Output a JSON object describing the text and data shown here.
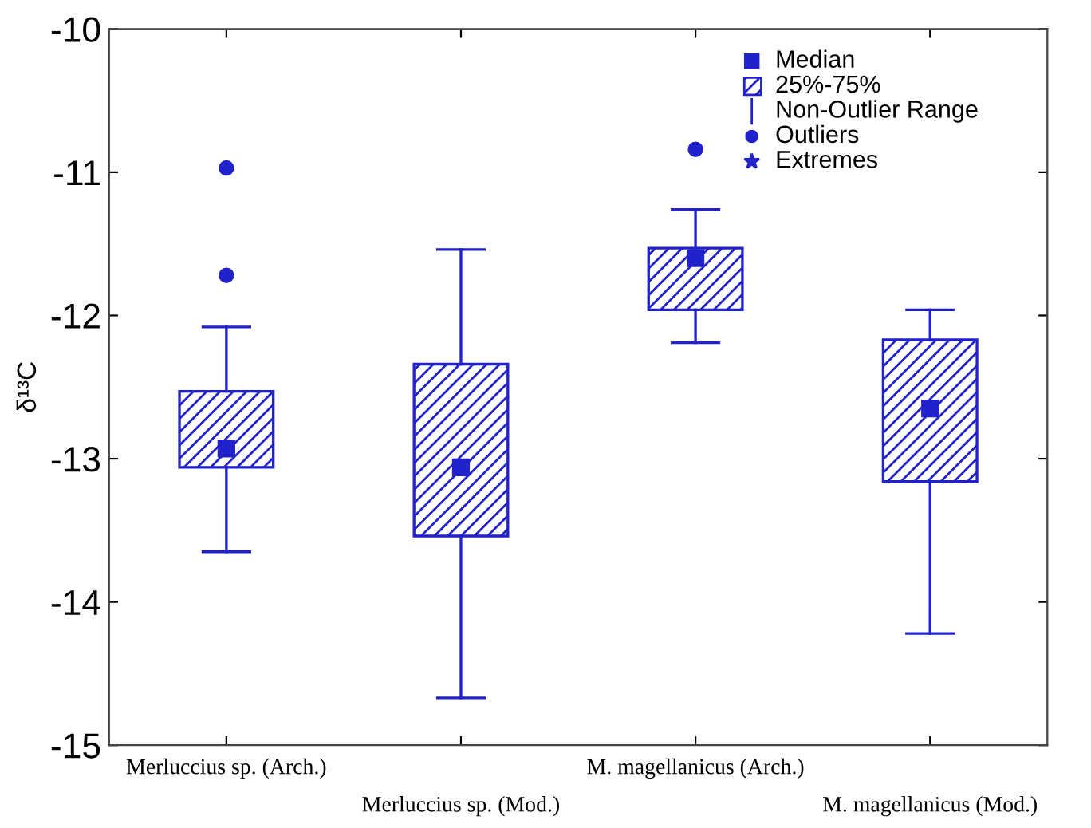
{
  "chart_data": {
    "type": "box",
    "ylabel": "δ¹³C",
    "categories": [
      "Merluccius sp. (Arch.)",
      "Merluccius sp. (Mod.)",
      "M. magellanicus (Arch.)",
      "M. magellanicus (Mod.)"
    ],
    "color": "#2222cc",
    "boxes": [
      {
        "low": -13.65,
        "q1": -13.06,
        "median": -12.93,
        "q3": -12.53,
        "high": -12.08,
        "outliers": [
          -10.97,
          -11.72
        ]
      },
      {
        "low": -14.67,
        "q1": -13.54,
        "median": -13.06,
        "q3": -12.34,
        "high": -11.54
      },
      {
        "low": -12.19,
        "q1": -11.96,
        "median": -11.6,
        "q3": -11.53,
        "high": -11.26,
        "outliers": [
          -10.84
        ]
      },
      {
        "low": -14.22,
        "q1": -13.16,
        "median": -12.65,
        "q3": -12.17,
        "high": -11.96
      }
    ],
    "ylim": [
      -15,
      -10
    ],
    "yticks": [
      -15,
      -14,
      -13,
      -12,
      -11,
      -10
    ],
    "annotations": [
      "Median",
      "25%-75%",
      "Non-Outlier Range",
      "Outliers",
      "Extremes"
    ],
    "grid": false
  }
}
